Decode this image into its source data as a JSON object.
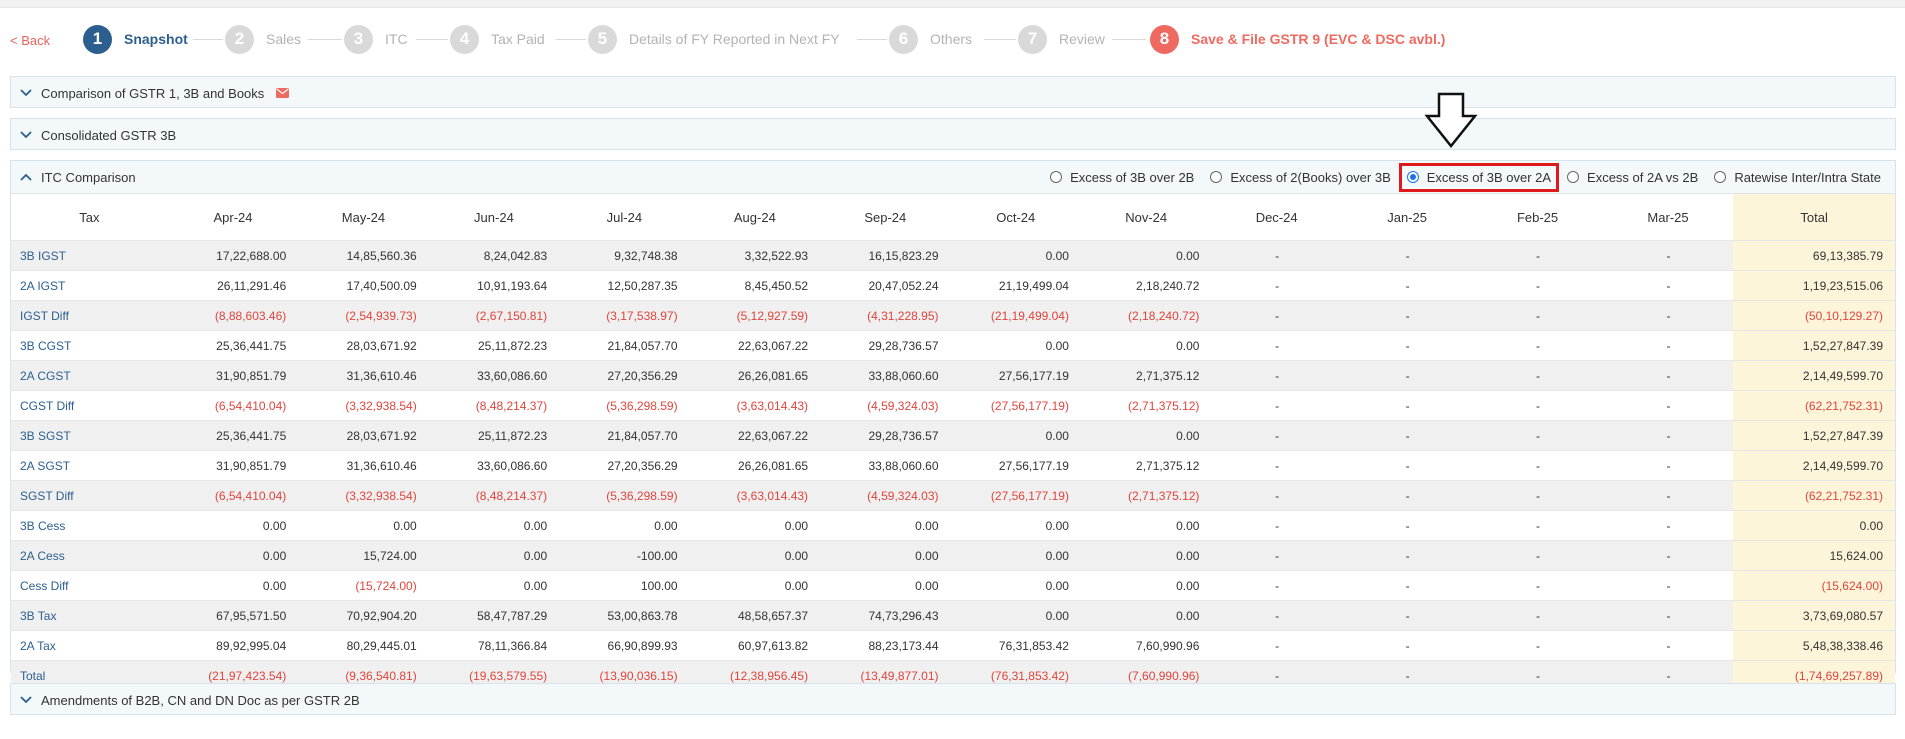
{
  "nav": {
    "back_label": "< Back"
  },
  "steps": [
    {
      "num": "1",
      "label": "Snapshot"
    },
    {
      "num": "2",
      "label": "Sales"
    },
    {
      "num": "3",
      "label": "ITC"
    },
    {
      "num": "4",
      "label": "Tax Paid"
    },
    {
      "num": "5",
      "label": "Details of FY Reported in Next FY"
    },
    {
      "num": "6",
      "label": "Others"
    },
    {
      "num": "7",
      "label": "Review"
    },
    {
      "num": "8",
      "label": "Save & File GSTR 9 (EVC & DSC avbl.)"
    }
  ],
  "panels": {
    "comparison": {
      "title": "Comparison of GSTR 1, 3B and Books",
      "icon": "mail-icon"
    },
    "consolidated": {
      "title": "Consolidated GSTR 3B"
    },
    "itc": {
      "title": "ITC Comparison"
    },
    "amendments": {
      "title": "Amendments of B2B, CN and DN Doc as per GSTR 2B"
    }
  },
  "radio_options": [
    {
      "label": "Excess of 3B over 2B",
      "selected": false
    },
    {
      "label": "Excess of 2(Books) over 3B",
      "selected": false
    },
    {
      "label": "Excess of 3B over 2A",
      "selected": true
    },
    {
      "label": "Excess of 2A vs 2B",
      "selected": false
    },
    {
      "label": "Ratewise Inter/Intra State",
      "selected": false
    }
  ],
  "table": {
    "columns": [
      "Tax",
      "Apr-24",
      "May-24",
      "Jun-24",
      "Jul-24",
      "Aug-24",
      "Sep-24",
      "Oct-24",
      "Nov-24",
      "Dec-24",
      "Jan-25",
      "Feb-25",
      "Mar-25",
      "Total"
    ],
    "rows": [
      {
        "tax": "3B IGST",
        "values": [
          "17,22,688.00",
          "14,85,560.36",
          "8,24,042.83",
          "9,32,748.38",
          "3,32,522.93",
          "16,15,823.29",
          "0.00",
          "0.00",
          "-",
          "-",
          "-",
          "-",
          "69,13,385.79"
        ]
      },
      {
        "tax": "2A IGST",
        "values": [
          "26,11,291.46",
          "17,40,500.09",
          "10,91,193.64",
          "12,50,287.35",
          "8,45,450.52",
          "20,47,052.24",
          "21,19,499.04",
          "2,18,240.72",
          "-",
          "-",
          "-",
          "-",
          "1,19,23,515.06"
        ]
      },
      {
        "tax": "IGST Diff",
        "values": [
          "(8,88,603.46)",
          "(2,54,939.73)",
          "(2,67,150.81)",
          "(3,17,538.97)",
          "(5,12,927.59)",
          "(4,31,228.95)",
          "(21,19,499.04)",
          "(2,18,240.72)",
          "-",
          "-",
          "-",
          "-",
          "(50,10,129.27)"
        ]
      },
      {
        "tax": "3B CGST",
        "values": [
          "25,36,441.75",
          "28,03,671.92",
          "25,11,872.23",
          "21,84,057.70",
          "22,63,067.22",
          "29,28,736.57",
          "0.00",
          "0.00",
          "-",
          "-",
          "-",
          "-",
          "1,52,27,847.39"
        ]
      },
      {
        "tax": "2A CGST",
        "values": [
          "31,90,851.79",
          "31,36,610.46",
          "33,60,086.60",
          "27,20,356.29",
          "26,26,081.65",
          "33,88,060.60",
          "27,56,177.19",
          "2,71,375.12",
          "-",
          "-",
          "-",
          "-",
          "2,14,49,599.70"
        ]
      },
      {
        "tax": "CGST Diff",
        "values": [
          "(6,54,410.04)",
          "(3,32,938.54)",
          "(8,48,214.37)",
          "(5,36,298.59)",
          "(3,63,014.43)",
          "(4,59,324.03)",
          "(27,56,177.19)",
          "(2,71,375.12)",
          "-",
          "-",
          "-",
          "-",
          "(62,21,752.31)"
        ]
      },
      {
        "tax": "3B SGST",
        "values": [
          "25,36,441.75",
          "28,03,671.92",
          "25,11,872.23",
          "21,84,057.70",
          "22,63,067.22",
          "29,28,736.57",
          "0.00",
          "0.00",
          "-",
          "-",
          "-",
          "-",
          "1,52,27,847.39"
        ]
      },
      {
        "tax": "2A SGST",
        "values": [
          "31,90,851.79",
          "31,36,610.46",
          "33,60,086.60",
          "27,20,356.29",
          "26,26,081.65",
          "33,88,060.60",
          "27,56,177.19",
          "2,71,375.12",
          "-",
          "-",
          "-",
          "-",
          "2,14,49,599.70"
        ]
      },
      {
        "tax": "SGST Diff",
        "values": [
          "(6,54,410.04)",
          "(3,32,938.54)",
          "(8,48,214.37)",
          "(5,36,298.59)",
          "(3,63,014.43)",
          "(4,59,324.03)",
          "(27,56,177.19)",
          "(2,71,375.12)",
          "-",
          "-",
          "-",
          "-",
          "(62,21,752.31)"
        ]
      },
      {
        "tax": "3B Cess",
        "values": [
          "0.00",
          "0.00",
          "0.00",
          "0.00",
          "0.00",
          "0.00",
          "0.00",
          "0.00",
          "-",
          "-",
          "-",
          "-",
          "0.00"
        ]
      },
      {
        "tax": "2A Cess",
        "values": [
          "0.00",
          "15,724.00",
          "0.00",
          "-100.00",
          "0.00",
          "0.00",
          "0.00",
          "0.00",
          "-",
          "-",
          "-",
          "-",
          "15,624.00"
        ]
      },
      {
        "tax": "Cess Diff",
        "values": [
          "0.00",
          "(15,724.00)",
          "0.00",
          "100.00",
          "0.00",
          "0.00",
          "0.00",
          "0.00",
          "-",
          "-",
          "-",
          "-",
          "(15,624.00)"
        ]
      },
      {
        "tax": "3B Tax",
        "values": [
          "67,95,571.50",
          "70,92,904.20",
          "58,47,787.29",
          "53,00,863.78",
          "48,58,657.37",
          "74,73,296.43",
          "0.00",
          "0.00",
          "-",
          "-",
          "-",
          "-",
          "3,73,69,080.57"
        ]
      },
      {
        "tax": "2A Tax",
        "values": [
          "89,92,995.04",
          "80,29,445.01",
          "78,11,366.84",
          "66,90,899.93",
          "60,97,613.82",
          "88,23,173.44",
          "76,31,853.42",
          "7,60,990.96",
          "-",
          "-",
          "-",
          "-",
          "5,48,38,338.46"
        ]
      },
      {
        "tax": "Total",
        "values": [
          "(21,97,423.54)",
          "(9,36,540.81)",
          "(19,63,579.55)",
          "(13,90,036.15)",
          "(12,38,956.45)",
          "(13,49,877.01)",
          "(76,31,853.42)",
          "(7,60,990.96)",
          "-",
          "-",
          "-",
          "-",
          "(1,74,69,257.89)"
        ]
      }
    ]
  },
  "colors": {
    "brand_blue": "#2c5f8f",
    "accent_red": "#ee6a60",
    "negative_red": "#e0443c",
    "highlight_red": "#e0191b",
    "total_column": "#fdf5da"
  }
}
